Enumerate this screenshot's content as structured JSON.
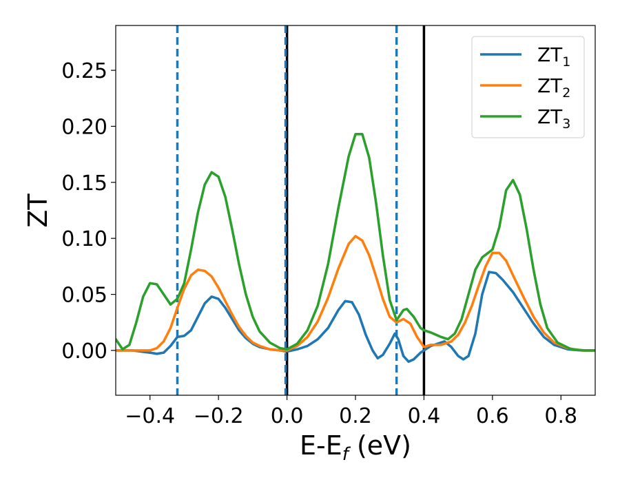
{
  "chart_data": {
    "type": "line",
    "xlabel": {
      "main": "E-E",
      "sub": "f",
      "tail": " (eV)"
    },
    "ylabel": "ZT",
    "xlim": [
      -0.5,
      0.9
    ],
    "ylim": [
      -0.04,
      0.29
    ],
    "xticks": [
      -0.4,
      -0.2,
      0.0,
      0.2,
      0.4,
      0.6,
      0.8
    ],
    "xtick_labels": [
      "−0.4",
      "−0.2",
      "0.0",
      "0.2",
      "0.4",
      "0.6",
      "0.8"
    ],
    "yticks": [
      0.0,
      0.05,
      0.1,
      0.15,
      0.2,
      0.25
    ],
    "ytick_labels": [
      "0.00",
      "0.05",
      "0.10",
      "0.15",
      "0.20",
      "0.25"
    ],
    "grid": false,
    "legend_position": "top-right",
    "vlines_dashed": {
      "x": [
        -0.32,
        0.0,
        0.32
      ],
      "color": "#1f77b4"
    },
    "vlines_solid": {
      "x": [
        0.0,
        0.4
      ],
      "color": "#000000"
    },
    "series": [
      {
        "name": "ZT",
        "sub": "1",
        "color": "#1f77b4",
        "points": [
          [
            -0.5,
            0.0
          ],
          [
            -0.45,
            0.0
          ],
          [
            -0.4,
            -0.002
          ],
          [
            -0.38,
            -0.003
          ],
          [
            -0.36,
            -0.002
          ],
          [
            -0.34,
            0.004
          ],
          [
            -0.32,
            0.012
          ],
          [
            -0.3,
            0.013
          ],
          [
            -0.28,
            0.018
          ],
          [
            -0.26,
            0.03
          ],
          [
            -0.24,
            0.042
          ],
          [
            -0.22,
            0.048
          ],
          [
            -0.2,
            0.046
          ],
          [
            -0.18,
            0.038
          ],
          [
            -0.16,
            0.028
          ],
          [
            -0.14,
            0.018
          ],
          [
            -0.12,
            0.011
          ],
          [
            -0.1,
            0.006
          ],
          [
            -0.08,
            0.003
          ],
          [
            -0.05,
            0.001
          ],
          [
            -0.02,
            0.0
          ],
          [
            0.0,
            -0.001
          ],
          [
            0.03,
            0.001
          ],
          [
            0.06,
            0.004
          ],
          [
            0.09,
            0.01
          ],
          [
            0.12,
            0.02
          ],
          [
            0.15,
            0.036
          ],
          [
            0.17,
            0.044
          ],
          [
            0.19,
            0.043
          ],
          [
            0.21,
            0.032
          ],
          [
            0.23,
            0.014
          ],
          [
            0.25,
            0.0
          ],
          [
            0.265,
            -0.007
          ],
          [
            0.28,
            -0.004
          ],
          [
            0.3,
            0.006
          ],
          [
            0.315,
            0.015
          ],
          [
            0.325,
            0.01
          ],
          [
            0.34,
            -0.005
          ],
          [
            0.355,
            -0.01
          ],
          [
            0.37,
            -0.008
          ],
          [
            0.39,
            -0.002
          ],
          [
            0.4,
            0.0
          ],
          [
            0.42,
            0.004
          ],
          [
            0.45,
            0.007
          ],
          [
            0.46,
            0.008
          ],
          [
            0.48,
            0.003
          ],
          [
            0.5,
            -0.005
          ],
          [
            0.515,
            -0.008
          ],
          [
            0.53,
            -0.005
          ],
          [
            0.55,
            0.015
          ],
          [
            0.57,
            0.05
          ],
          [
            0.59,
            0.07
          ],
          [
            0.61,
            0.069
          ],
          [
            0.63,
            0.063
          ],
          [
            0.66,
            0.052
          ],
          [
            0.69,
            0.038
          ],
          [
            0.72,
            0.024
          ],
          [
            0.75,
            0.012
          ],
          [
            0.78,
            0.005
          ],
          [
            0.82,
            0.001
          ],
          [
            0.86,
            0.0
          ],
          [
            0.9,
            0.0
          ]
        ]
      },
      {
        "name": "ZT",
        "sub": "2",
        "color": "#ff7f0e",
        "points": [
          [
            -0.5,
            0.0
          ],
          [
            -0.45,
            0.0
          ],
          [
            -0.4,
            0.0
          ],
          [
            -0.38,
            0.002
          ],
          [
            -0.36,
            0.008
          ],
          [
            -0.34,
            0.02
          ],
          [
            -0.32,
            0.038
          ],
          [
            -0.3,
            0.055
          ],
          [
            -0.28,
            0.067
          ],
          [
            -0.26,
            0.072
          ],
          [
            -0.24,
            0.071
          ],
          [
            -0.22,
            0.066
          ],
          [
            -0.2,
            0.056
          ],
          [
            -0.18,
            0.044
          ],
          [
            -0.16,
            0.032
          ],
          [
            -0.14,
            0.021
          ],
          [
            -0.12,
            0.013
          ],
          [
            -0.1,
            0.007
          ],
          [
            -0.08,
            0.004
          ],
          [
            -0.05,
            0.001
          ],
          [
            -0.02,
            0.0
          ],
          [
            0.0,
            0.0
          ],
          [
            0.03,
            0.004
          ],
          [
            0.06,
            0.012
          ],
          [
            0.09,
            0.026
          ],
          [
            0.12,
            0.047
          ],
          [
            0.15,
            0.073
          ],
          [
            0.18,
            0.095
          ],
          [
            0.2,
            0.102
          ],
          [
            0.22,
            0.098
          ],
          [
            0.24,
            0.085
          ],
          [
            0.26,
            0.066
          ],
          [
            0.28,
            0.046
          ],
          [
            0.3,
            0.03
          ],
          [
            0.32,
            0.025
          ],
          [
            0.34,
            0.028
          ],
          [
            0.36,
            0.024
          ],
          [
            0.38,
            0.012
          ],
          [
            0.4,
            0.003
          ],
          [
            0.42,
            0.005
          ],
          [
            0.45,
            0.005
          ],
          [
            0.48,
            0.008
          ],
          [
            0.5,
            0.014
          ],
          [
            0.52,
            0.025
          ],
          [
            0.54,
            0.04
          ],
          [
            0.56,
            0.058
          ],
          [
            0.58,
            0.075
          ],
          [
            0.6,
            0.087
          ],
          [
            0.62,
            0.087
          ],
          [
            0.64,
            0.08
          ],
          [
            0.66,
            0.067
          ],
          [
            0.69,
            0.048
          ],
          [
            0.72,
            0.03
          ],
          [
            0.75,
            0.016
          ],
          [
            0.78,
            0.007
          ],
          [
            0.82,
            0.002
          ],
          [
            0.86,
            0.0
          ],
          [
            0.9,
            0.0
          ]
        ]
      },
      {
        "name": "ZT",
        "sub": "3",
        "color": "#2ca02c",
        "points": [
          [
            -0.5,
            0.01
          ],
          [
            -0.48,
            0.001
          ],
          [
            -0.46,
            0.005
          ],
          [
            -0.44,
            0.025
          ],
          [
            -0.42,
            0.048
          ],
          [
            -0.4,
            0.06
          ],
          [
            -0.38,
            0.059
          ],
          [
            -0.36,
            0.05
          ],
          [
            -0.34,
            0.041
          ],
          [
            -0.32,
            0.046
          ],
          [
            -0.3,
            0.06
          ],
          [
            -0.28,
            0.09
          ],
          [
            -0.26,
            0.123
          ],
          [
            -0.24,
            0.148
          ],
          [
            -0.22,
            0.159
          ],
          [
            -0.2,
            0.155
          ],
          [
            -0.18,
            0.137
          ],
          [
            -0.16,
            0.108
          ],
          [
            -0.14,
            0.077
          ],
          [
            -0.12,
            0.05
          ],
          [
            -0.1,
            0.03
          ],
          [
            -0.08,
            0.017
          ],
          [
            -0.05,
            0.007
          ],
          [
            -0.02,
            0.002
          ],
          [
            0.0,
            0.001
          ],
          [
            0.03,
            0.006
          ],
          [
            0.06,
            0.018
          ],
          [
            0.09,
            0.04
          ],
          [
            0.12,
            0.077
          ],
          [
            0.15,
            0.127
          ],
          [
            0.18,
            0.173
          ],
          [
            0.2,
            0.193
          ],
          [
            0.22,
            0.193
          ],
          [
            0.24,
            0.172
          ],
          [
            0.26,
            0.132
          ],
          [
            0.28,
            0.085
          ],
          [
            0.3,
            0.045
          ],
          [
            0.32,
            0.027
          ],
          [
            0.34,
            0.036
          ],
          [
            0.35,
            0.037
          ],
          [
            0.37,
            0.03
          ],
          [
            0.39,
            0.02
          ],
          [
            0.4,
            0.018
          ],
          [
            0.42,
            0.016
          ],
          [
            0.45,
            0.012
          ],
          [
            0.47,
            0.01
          ],
          [
            0.49,
            0.015
          ],
          [
            0.51,
            0.028
          ],
          [
            0.53,
            0.05
          ],
          [
            0.55,
            0.072
          ],
          [
            0.57,
            0.083
          ],
          [
            0.6,
            0.09
          ],
          [
            0.62,
            0.11
          ],
          [
            0.64,
            0.143
          ],
          [
            0.66,
            0.152
          ],
          [
            0.68,
            0.139
          ],
          [
            0.7,
            0.108
          ],
          [
            0.72,
            0.072
          ],
          [
            0.74,
            0.041
          ],
          [
            0.76,
            0.02
          ],
          [
            0.79,
            0.007
          ],
          [
            0.83,
            0.001
          ],
          [
            0.87,
            0.0
          ],
          [
            0.9,
            0.0
          ]
        ]
      }
    ]
  }
}
